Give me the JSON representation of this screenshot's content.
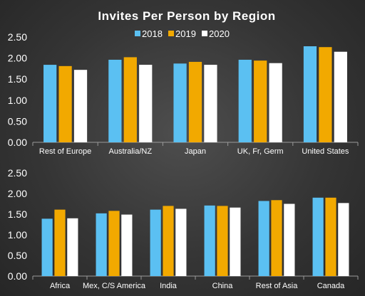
{
  "chart_data": {
    "type": "bar",
    "title": "Invites Per Person by Region",
    "series_names": [
      "2018",
      "2019",
      "2020"
    ],
    "colors": {
      "2018": "#5bc0f2",
      "2019": "#f2a900",
      "2020": "#ffffff"
    },
    "legend_position": "top",
    "grid": false,
    "panels": [
      {
        "categories": [
          "Rest of Europe",
          "Australia/NZ",
          "Japan",
          "UK, Fr, Germ",
          "United States"
        ],
        "series": [
          {
            "name": "2018",
            "values": [
              1.84,
              1.96,
              1.87,
              1.96,
              2.28
            ]
          },
          {
            "name": "2019",
            "values": [
              1.81,
              2.02,
              1.91,
              1.94,
              2.26
            ]
          },
          {
            "name": "2020",
            "values": [
              1.72,
              1.84,
              1.84,
              1.88,
              2.15
            ]
          }
        ],
        "yticks": [
          "0.00",
          "0.50",
          "1.00",
          "1.50",
          "2.00",
          "2.50"
        ],
        "ylim": [
          0,
          2.5
        ]
      },
      {
        "categories": [
          "Africa",
          "Mex, C/S America",
          "India",
          "China",
          "Rest of Asia",
          "Canada"
        ],
        "series": [
          {
            "name": "2018",
            "values": [
              1.39,
              1.52,
              1.61,
              1.71,
              1.82,
              1.9
            ]
          },
          {
            "name": "2019",
            "values": [
              1.61,
              1.58,
              1.7,
              1.7,
              1.84,
              1.9
            ]
          },
          {
            "name": "2020",
            "values": [
              1.4,
              1.49,
              1.63,
              1.66,
              1.75,
              1.77
            ]
          }
        ],
        "yticks": [
          "0.00",
          "0.50",
          "1.00",
          "1.50",
          "2.00",
          "2.50"
        ],
        "ylim": [
          0,
          2.5
        ]
      }
    ]
  }
}
